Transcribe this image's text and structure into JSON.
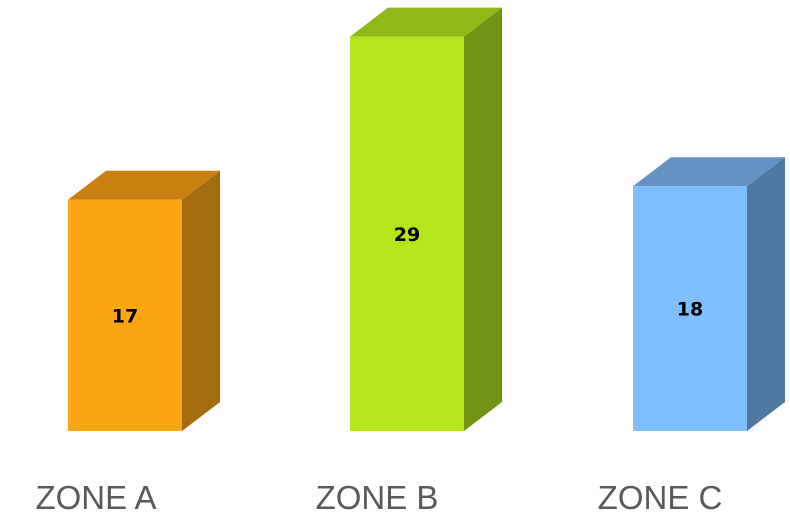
{
  "chart_data": {
    "type": "bar",
    "style": "3d-column",
    "categories": [
      "ZONE A",
      "ZONE B",
      "ZONE C"
    ],
    "values": [
      17,
      29,
      18
    ],
    "title": "",
    "xlabel": "",
    "ylabel": "",
    "ylim": [
      0,
      30
    ],
    "grid": false,
    "legend": "none",
    "colors": [
      {
        "front": "#FCA512",
        "top": "#C98010",
        "side": "#A36C0E"
      },
      {
        "front": "#B5E61D",
        "top": "#91B91A",
        "side": "#739315"
      },
      {
        "front": "#80BFFF",
        "top": "#6592C2",
        "side": "#4E77A1"
      }
    ]
  }
}
